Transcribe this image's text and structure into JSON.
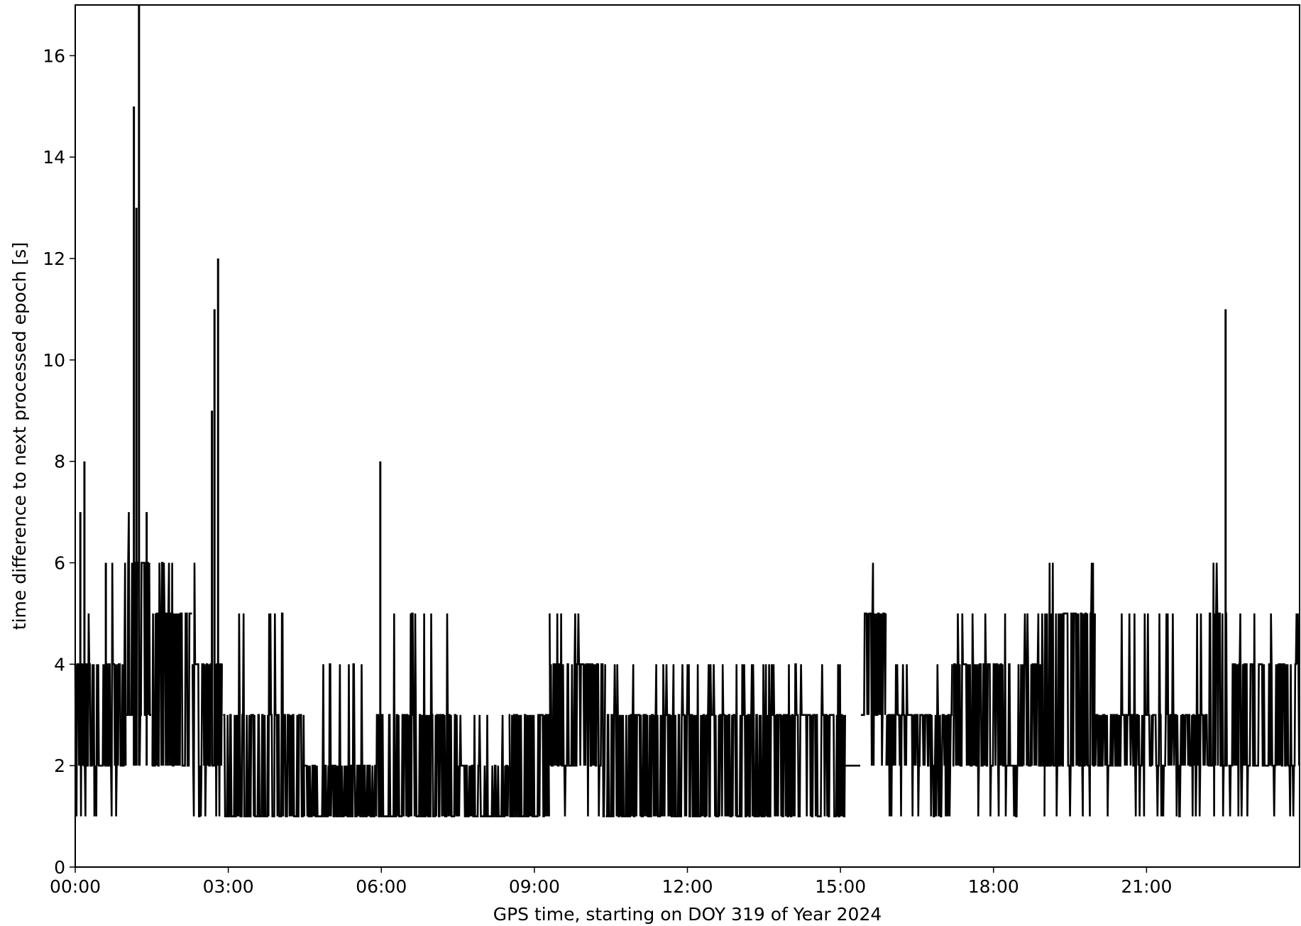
{
  "chart_data": {
    "type": "line",
    "title": "",
    "xlabel": "GPS time, starting on DOY 319 of Year 2024",
    "ylabel": "time difference to next processed epoch [s]",
    "x_unit": "hours",
    "xlim": [
      0,
      24
    ],
    "ylim": [
      0,
      17
    ],
    "grid": false,
    "legend": "none",
    "line_color": "#000000",
    "x_ticks": [
      {
        "value": 0,
        "label": "00:00"
      },
      {
        "value": 3,
        "label": "03:00"
      },
      {
        "value": 6,
        "label": "06:00"
      },
      {
        "value": 9,
        "label": "09:00"
      },
      {
        "value": 12,
        "label": "12:00"
      },
      {
        "value": 15,
        "label": "15:00"
      },
      {
        "value": 18,
        "label": "18:00"
      },
      {
        "value": 21,
        "label": "21:00"
      }
    ],
    "y_ticks": [
      {
        "value": 0,
        "label": "0"
      },
      {
        "value": 2,
        "label": "2"
      },
      {
        "value": 4,
        "label": "4"
      },
      {
        "value": 6,
        "label": "6"
      },
      {
        "value": 8,
        "label": "8"
      },
      {
        "value": 10,
        "label": "10"
      },
      {
        "value": 12,
        "label": "12"
      },
      {
        "value": 14,
        "label": "14"
      },
      {
        "value": 16,
        "label": "16"
      }
    ],
    "segments": [
      {
        "x": [
          0.0,
          0.4
        ],
        "y_min": 1,
        "y_max": 5,
        "y_base": 2,
        "y_top": 4
      },
      {
        "x": [
          0.4,
          1.0
        ],
        "y_min": 1,
        "y_max": 6,
        "y_base": 2,
        "y_top": 4
      },
      {
        "x": [
          1.0,
          1.5
        ],
        "y_min": 2,
        "y_max": 7,
        "y_base": 3,
        "y_top": 6
      },
      {
        "x": [
          1.5,
          2.3
        ],
        "y_min": 2,
        "y_max": 6,
        "y_base": 2,
        "y_top": 5
      },
      {
        "x": [
          2.3,
          2.9
        ],
        "y_min": 1,
        "y_max": 6,
        "y_base": 2,
        "y_top": 4
      },
      {
        "x": [
          2.9,
          4.5
        ],
        "y_min": 1,
        "y_max": 5,
        "y_base": 1,
        "y_top": 3
      },
      {
        "x": [
          4.5,
          5.9
        ],
        "y_min": 1,
        "y_max": 4,
        "y_base": 1,
        "y_top": 2
      },
      {
        "x": [
          5.9,
          7.5
        ],
        "y_min": 1,
        "y_max": 5,
        "y_base": 1,
        "y_top": 3
      },
      {
        "x": [
          7.5,
          8.5
        ],
        "y_min": 1,
        "y_max": 3,
        "y_base": 1,
        "y_top": 2
      },
      {
        "x": [
          8.5,
          9.3
        ],
        "y_min": 1,
        "y_max": 3,
        "y_base": 1,
        "y_top": 3
      },
      {
        "x": [
          9.3,
          10.4
        ],
        "y_min": 1,
        "y_max": 5,
        "y_base": 2,
        "y_top": 4
      },
      {
        "x": [
          10.4,
          12.8
        ],
        "y_min": 1,
        "y_max": 4,
        "y_base": 1,
        "y_top": 3
      },
      {
        "x": [
          12.8,
          15.1
        ],
        "y_min": 1,
        "y_max": 4,
        "y_base": 1,
        "y_top": 3
      },
      {
        "x": [
          15.1,
          15.4
        ],
        "y_min": 2,
        "y_max": 2,
        "y_base": 2,
        "y_top": 2
      },
      {
        "x": [
          15.4,
          15.9
        ],
        "y_min": 2,
        "y_max": 6,
        "y_base": 3,
        "y_top": 5
      },
      {
        "x": [
          15.9,
          17.2
        ],
        "y_min": 1,
        "y_max": 4,
        "y_base": 2,
        "y_top": 3
      },
      {
        "x": [
          17.2,
          19.0
        ],
        "y_min": 1,
        "y_max": 5,
        "y_base": 2,
        "y_top": 4
      },
      {
        "x": [
          19.0,
          20.0
        ],
        "y_min": 1,
        "y_max": 6,
        "y_base": 2,
        "y_top": 5
      },
      {
        "x": [
          20.0,
          22.2
        ],
        "y_min": 1,
        "y_max": 5,
        "y_base": 2,
        "y_top": 3
      },
      {
        "x": [
          22.2,
          22.6
        ],
        "y_min": 1,
        "y_max": 6,
        "y_base": 2,
        "y_top": 5
      },
      {
        "x": [
          22.6,
          24.0
        ],
        "y_min": 1,
        "y_max": 5,
        "y_base": 2,
        "y_top": 4
      }
    ],
    "spikes": [
      {
        "x": 0.1,
        "y": 7
      },
      {
        "x": 0.18,
        "y": 8
      },
      {
        "x": 0.6,
        "y": 6
      },
      {
        "x": 1.15,
        "y": 15
      },
      {
        "x": 1.2,
        "y": 13
      },
      {
        "x": 1.25,
        "y": 17
      },
      {
        "x": 1.4,
        "y": 7
      },
      {
        "x": 2.68,
        "y": 9
      },
      {
        "x": 2.73,
        "y": 11
      },
      {
        "x": 2.8,
        "y": 12
      },
      {
        "x": 5.98,
        "y": 8
      },
      {
        "x": 22.55,
        "y": 11
      }
    ]
  }
}
